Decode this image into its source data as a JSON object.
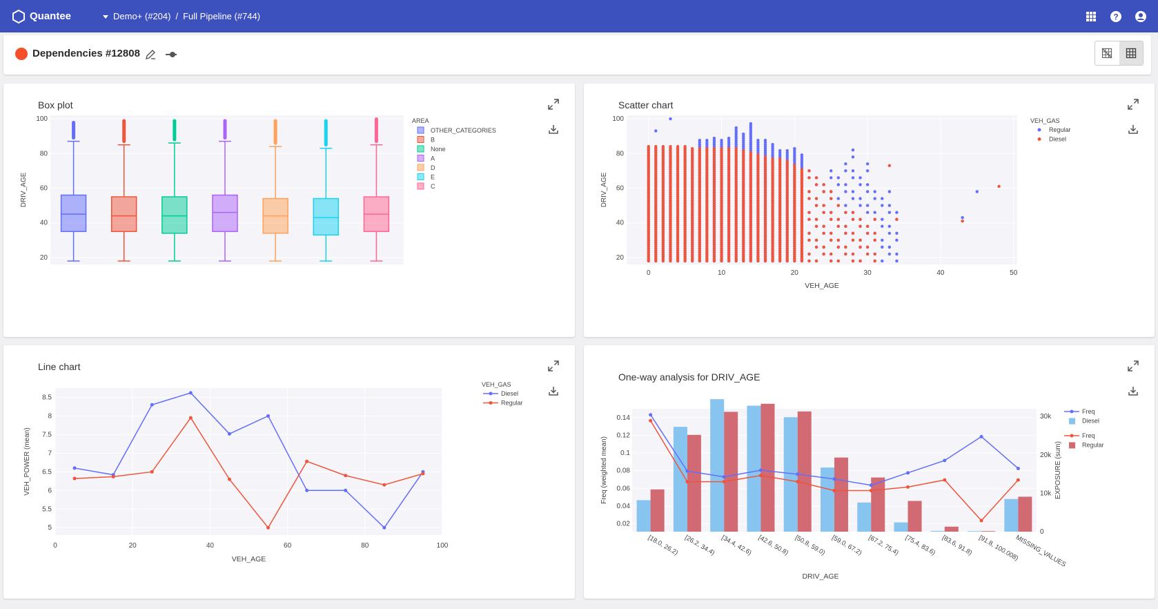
{
  "app": {
    "name": "Quantee"
  },
  "breadcrumb": {
    "project": "Demo+ (#204)",
    "separator": "/",
    "pipeline": "Full Pipeline (#744)"
  },
  "header": {
    "title": "Dependencies #12808"
  },
  "colors": {
    "topbar": "#3d51be",
    "blue": "#636efa",
    "orange": "#ef553b",
    "lightblue": "#87c5f0",
    "red": "#d16a73"
  },
  "panels": {
    "box": {
      "title": "Box plot"
    },
    "scatter": {
      "title": "Scatter chart"
    },
    "line": {
      "title": "Line chart"
    },
    "oneway": {
      "title": "One-way analysis for DRIV_AGE"
    }
  },
  "chart_data": [
    {
      "type": "box",
      "title": "Box plot",
      "ylabel": "DRIV_AGE",
      "yticks": [
        20,
        40,
        60,
        80,
        100
      ],
      "ylim": [
        16,
        102
      ],
      "legend_title": "AREA",
      "categories": [
        "OTHER_CATEGORIES",
        "B",
        "None",
        "A",
        "D",
        "E",
        "C"
      ],
      "colors": [
        "#636efa",
        "#ef553b",
        "#00cc96",
        "#ab63fa",
        "#ffa15a",
        "#19d3f3",
        "#ff6692"
      ],
      "boxes": [
        {
          "name": "OTHER_CATEGORIES",
          "min": 18,
          "q1": 35,
          "median": 45,
          "q3": 56,
          "max": 87,
          "outlier_max": 98
        },
        {
          "name": "B",
          "min": 18,
          "q1": 35,
          "median": 44,
          "q3": 55,
          "max": 85,
          "outlier_max": 99
        },
        {
          "name": "None",
          "min": 18,
          "q1": 34,
          "median": 44,
          "q3": 55,
          "max": 86,
          "outlier_max": 99
        },
        {
          "name": "A",
          "min": 18,
          "q1": 35,
          "median": 46,
          "q3": 56,
          "max": 87,
          "outlier_max": 99
        },
        {
          "name": "D",
          "min": 18,
          "q1": 34,
          "median": 44,
          "q3": 54,
          "max": 84,
          "outlier_max": 99
        },
        {
          "name": "E",
          "min": 18,
          "q1": 33,
          "median": 43,
          "q3": 54,
          "max": 83,
          "outlier_max": 99
        },
        {
          "name": "C",
          "min": 18,
          "q1": 35,
          "median": 45,
          "q3": 55,
          "max": 85,
          "outlier_max": 100
        }
      ]
    },
    {
      "type": "scatter",
      "title": "Scatter chart",
      "xlabel": "VEH_AGE",
      "ylabel": "DRIV_AGE",
      "xticks": [
        0,
        10,
        20,
        30,
        40,
        50
      ],
      "yticks": [
        20,
        40,
        60,
        80,
        100
      ],
      "xlim": [
        -3,
        50.5
      ],
      "ylim": [
        16,
        102
      ],
      "legend_title": "VEH_GAS",
      "series": [
        {
          "name": "Regular",
          "color": "#636efa",
          "max_by_age": [
            84,
            84,
            84,
            84,
            84,
            84,
            82,
            88,
            88,
            90,
            88,
            90,
            96,
            92,
            98,
            88,
            88,
            86,
            82,
            82,
            84,
            80,
            74,
            68,
            66,
            70,
            72,
            75,
            87,
            72,
            77,
            62,
            58,
            60,
            52
          ],
          "extra_points": [
            [
              1,
              93
            ],
            [
              3,
              100
            ],
            [
              43,
              43
            ],
            [
              45,
              58
            ]
          ]
        },
        {
          "name": "Diesel",
          "color": "#ef553b",
          "max_by_age": [
            85,
            85,
            85,
            85,
            85,
            85,
            84,
            84,
            84,
            84,
            83,
            83,
            83,
            82,
            81,
            80,
            79,
            78,
            77,
            76,
            74,
            72,
            70,
            67,
            66,
            60,
            50,
            48,
            46,
            44,
            43,
            42
          ],
          "extra_points": [
            [
              33,
              73
            ],
            [
              34,
              42
            ],
            [
              43,
              41
            ],
            [
              48,
              61
            ]
          ]
        }
      ]
    },
    {
      "type": "line",
      "title": "Line chart",
      "xlabel": "VEH_AGE",
      "ylabel": "VEH_POWER (mean)",
      "xticks": [
        0,
        20,
        40,
        60,
        80,
        100
      ],
      "yticks": [
        5,
        5.5,
        6,
        6.5,
        7,
        7.5,
        8,
        8.5
      ],
      "xlim": [
        0,
        100
      ],
      "ylim": [
        4.8,
        8.75
      ],
      "legend_title": "VEH_GAS",
      "x": [
        5,
        15,
        25,
        35,
        45,
        55,
        65,
        75,
        85,
        95
      ],
      "series": [
        {
          "name": "Diesel",
          "color": "#636efa",
          "values": [
            6.6,
            6.42,
            8.3,
            8.62,
            7.52,
            8.0,
            6.0,
            6.0,
            5.0,
            6.5
          ]
        },
        {
          "name": "Regular",
          "color": "#ef553b",
          "values": [
            6.32,
            6.37,
            6.5,
            7.95,
            6.3,
            5.0,
            6.78,
            6.4,
            6.15,
            6.45
          ]
        }
      ]
    },
    {
      "type": "bar+line",
      "title": "One-way analysis for DRIV_AGE",
      "xlabel": "DRIV_AGE",
      "ylabel": "Freq (weighted mean)",
      "y2label": "EXPOSURE (sum)",
      "yticks": [
        0.02,
        0.04,
        0.06,
        0.08,
        0.1,
        0.12,
        0.14
      ],
      "y2ticks": [
        "0",
        "10k",
        "20k",
        "30k"
      ],
      "ylim": [
        0.011,
        0.15
      ],
      "y2lim": [
        0,
        32000
      ],
      "categories": [
        "[18.0, 26.2)",
        "[26.2, 34.4)",
        "[34.4, 42.6)",
        "[42.6, 50.8)",
        "[50.8, 59.0)",
        "[59.0, 67.2)",
        "[67.2, 75.4)",
        "[75.4, 83.6)",
        "[83.6, 91.8)",
        "[91.8, 100.008)",
        "MISSING_VALUES"
      ],
      "legend": [
        "Freq",
        "Diesel",
        "Freq",
        "Regular"
      ],
      "bars": [
        {
          "name": "Diesel",
          "color": "#87c5f0",
          "values": [
            8200,
            27300,
            34500,
            32800,
            29800,
            16700,
            7600,
            2400,
            200,
            150,
            8500
          ]
        },
        {
          "name": "Regular",
          "color": "#d16a73",
          "values": [
            11000,
            25200,
            31200,
            33300,
            31300,
            19300,
            14100,
            8000,
            1300,
            150,
            9100
          ]
        }
      ],
      "lines": [
        {
          "name": "Freq",
          "group": "Diesel",
          "color": "#636efa",
          "values": [
            0.1432,
            0.0795,
            0.073,
            0.0805,
            0.076,
            0.0705,
            0.0635,
            0.0775,
            0.0915,
            0.1185,
            0.0825
          ]
        },
        {
          "name": "Freq",
          "group": "Regular",
          "color": "#ef553b",
          "values": [
            0.1365,
            0.0675,
            0.0675,
            0.0745,
            0.0675,
            0.0575,
            0.0575,
            0.0615,
            0.0695,
            0.0235,
            0.0695
          ]
        }
      ]
    }
  ]
}
